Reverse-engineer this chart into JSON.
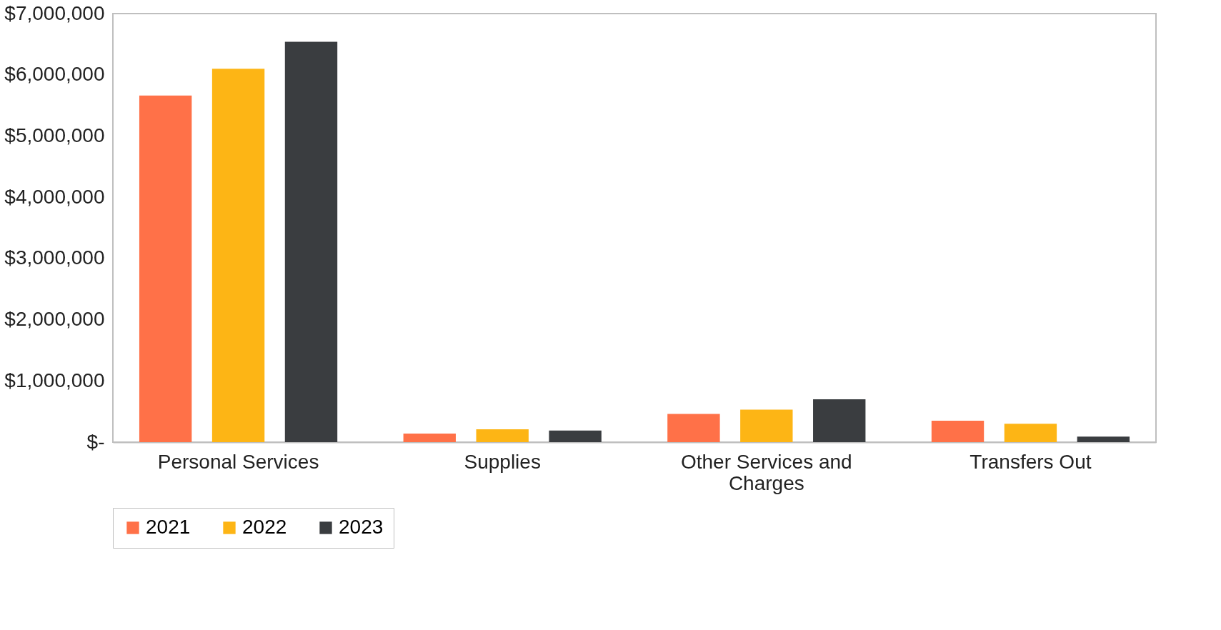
{
  "chart_data": {
    "type": "bar",
    "categories": [
      "Personal Services",
      "Supplies",
      "Other Services and Charges",
      "Transfers Out"
    ],
    "series": [
      {
        "name": "2021",
        "color": "#ff7148",
        "values": [
          5660000,
          140000,
          460000,
          350000
        ]
      },
      {
        "name": "2022",
        "color": "#fdb515",
        "values": [
          6100000,
          210000,
          530000,
          300000
        ]
      },
      {
        "name": "2023",
        "color": "#3a3d40",
        "values": [
          6540000,
          190000,
          700000,
          90000
        ]
      }
    ],
    "ylim": [
      0,
      7000000
    ],
    "yticks": [
      {
        "value": 0,
        "label": "$-"
      },
      {
        "value": 1000000,
        "label": "$1,000,000"
      },
      {
        "value": 2000000,
        "label": "$2,000,000"
      },
      {
        "value": 3000000,
        "label": "$3,000,000"
      },
      {
        "value": 4000000,
        "label": "$4,000,000"
      },
      {
        "value": 5000000,
        "label": "$5,000,000"
      },
      {
        "value": 6000000,
        "label": "$6,000,000"
      },
      {
        "value": 7000000,
        "label": "$7,000,000"
      }
    ],
    "grid": false,
    "legend": "bottom"
  }
}
